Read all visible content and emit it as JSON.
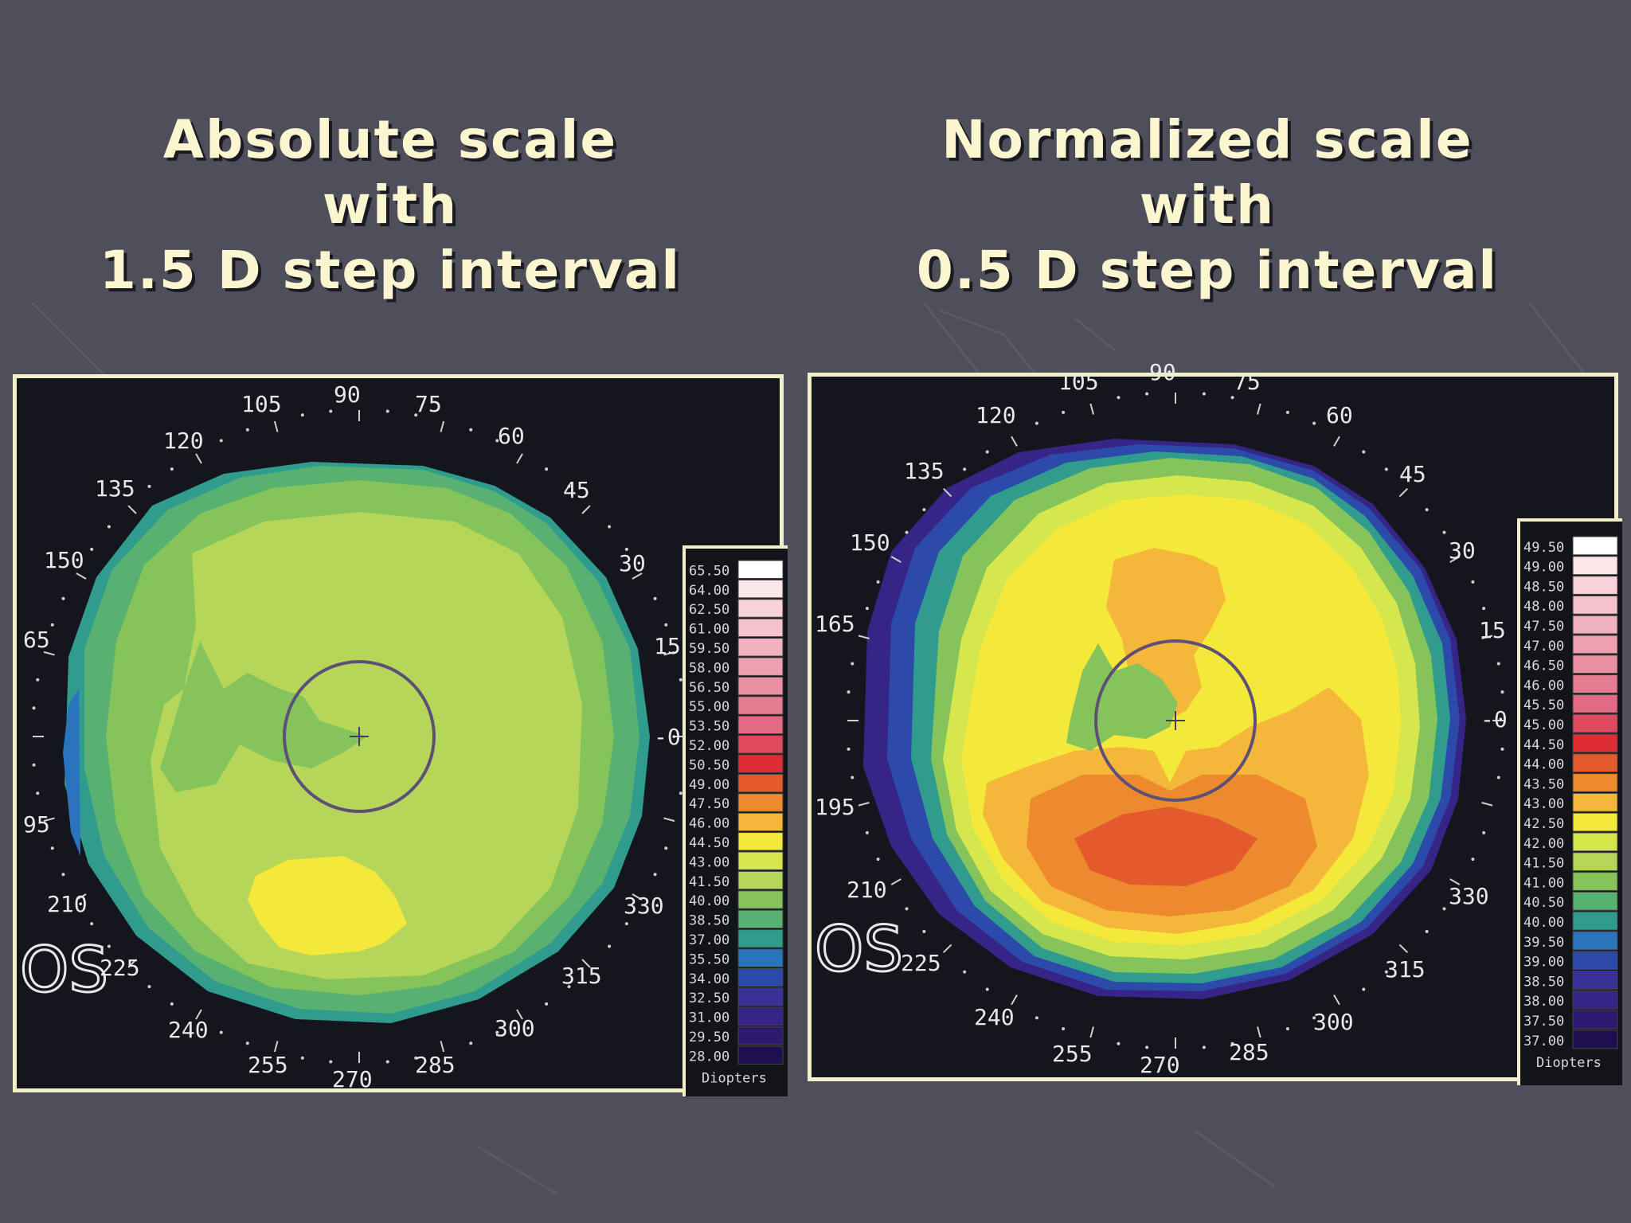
{
  "left": {
    "title": [
      "Absolute scale",
      "with",
      "1.5 D step interval"
    ],
    "eye": "OS",
    "angles": [
      "90",
      "105",
      "120",
      "135",
      "150",
      "65",
      "95",
      "210",
      "225",
      "240",
      "255",
      "270",
      "285",
      "300",
      "315",
      "330",
      "-0",
      "15",
      "30",
      "45",
      "60",
      "75"
    ],
    "scale_label": "Diopters",
    "scale": [
      {
        "v": "65.50",
        "c": "#ffffff"
      },
      {
        "v": "64.00",
        "c": "#fbe6ea"
      },
      {
        "v": "62.50",
        "c": "#f7d2da"
      },
      {
        "v": "61.00",
        "c": "#f4c2cc"
      },
      {
        "v": "59.50",
        "c": "#f1b2bf"
      },
      {
        "v": "58.00",
        "c": "#ee9fb0"
      },
      {
        "v": "56.50",
        "c": "#ea8ea1"
      },
      {
        "v": "55.00",
        "c": "#e67c92"
      },
      {
        "v": "53.50",
        "c": "#e26a82"
      },
      {
        "v": "52.00",
        "c": "#df4b5e"
      },
      {
        "v": "50.50",
        "c": "#dc2c34"
      },
      {
        "v": "49.00",
        "c": "#e35a2c"
      },
      {
        "v": "47.50",
        "c": "#ee8a2e"
      },
      {
        "v": "46.00",
        "c": "#f5b73a"
      },
      {
        "v": "44.50",
        "c": "#f4e93a"
      },
      {
        "v": "43.00",
        "c": "#d6e74e"
      },
      {
        "v": "41.50",
        "c": "#b6d65a"
      },
      {
        "v": "40.00",
        "c": "#84c45a"
      },
      {
        "v": "38.50",
        "c": "#58b170"
      },
      {
        "v": "37.00",
        "c": "#2f9c8e"
      },
      {
        "v": "35.50",
        "c": "#2a74bd"
      },
      {
        "v": "34.00",
        "c": "#2c4aa9"
      },
      {
        "v": "32.50",
        "c": "#3a3197"
      },
      {
        "v": "31.00",
        "c": "#362586"
      },
      {
        "v": "29.50",
        "c": "#2d1a70"
      },
      {
        "v": "28.00",
        "c": "#1e1050"
      }
    ]
  },
  "right": {
    "title": [
      "Normalized scale",
      "with",
      "0.5 D step interval"
    ],
    "eye": "OS",
    "angles": [
      "105",
      "90",
      "75",
      "120",
      "60",
      "135",
      "45",
      "150",
      "30",
      "165",
      "15",
      "-0",
      "195",
      "210",
      "330",
      "225",
      "315",
      "240",
      "300",
      "255",
      "270",
      "285"
    ],
    "scale_label": "Diopters",
    "scale": [
      {
        "v": "49.50",
        "c": "#ffffff"
      },
      {
        "v": "49.00",
        "c": "#fbe6ea"
      },
      {
        "v": "48.50",
        "c": "#f7d2da"
      },
      {
        "v": "48.00",
        "c": "#f4c2cc"
      },
      {
        "v": "47.50",
        "c": "#f1b2bf"
      },
      {
        "v": "47.00",
        "c": "#ee9fb0"
      },
      {
        "v": "46.50",
        "c": "#ea8ea1"
      },
      {
        "v": "46.00",
        "c": "#e67c92"
      },
      {
        "v": "45.50",
        "c": "#e26a82"
      },
      {
        "v": "45.00",
        "c": "#df4b5e"
      },
      {
        "v": "44.50",
        "c": "#dc2c34"
      },
      {
        "v": "44.00",
        "c": "#e35a2c"
      },
      {
        "v": "43.50",
        "c": "#ee8a2e"
      },
      {
        "v": "43.00",
        "c": "#f5b73a"
      },
      {
        "v": "42.50",
        "c": "#f4e93a"
      },
      {
        "v": "42.00",
        "c": "#d6e74e"
      },
      {
        "v": "41.50",
        "c": "#b6d65a"
      },
      {
        "v": "41.00",
        "c": "#84c45a"
      },
      {
        "v": "40.50",
        "c": "#58b170"
      },
      {
        "v": "40.00",
        "c": "#2f9c8e"
      },
      {
        "v": "39.50",
        "c": "#2a74bd"
      },
      {
        "v": "39.00",
        "c": "#2c4aa9"
      },
      {
        "v": "38.50",
        "c": "#3a3197"
      },
      {
        "v": "38.00",
        "c": "#362586"
      },
      {
        "v": "37.50",
        "c": "#2d1a70"
      },
      {
        "v": "37.00",
        "c": "#1e1050"
      }
    ]
  }
}
